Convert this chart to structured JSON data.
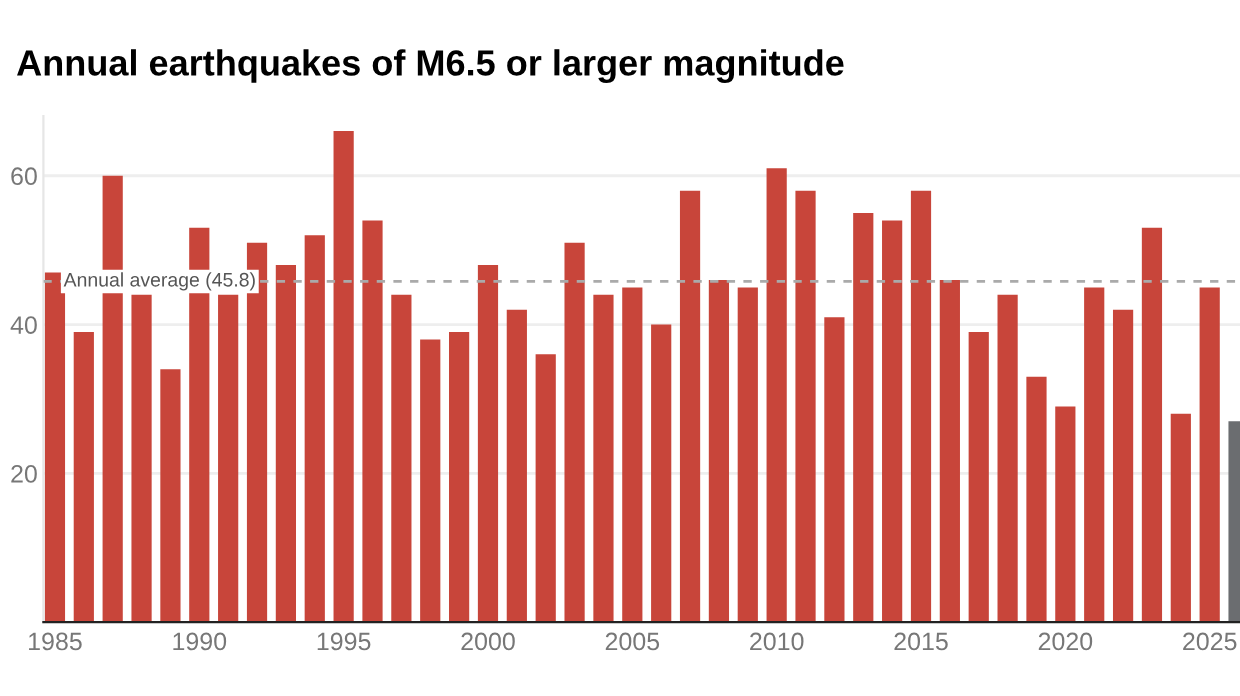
{
  "chart_data": {
    "type": "bar",
    "title": "Annual earthquakes of M6.5 or larger magnitude",
    "x": [
      1985,
      1986,
      1987,
      1988,
      1989,
      1990,
      1991,
      1992,
      1993,
      1994,
      1995,
      1996,
      1997,
      1998,
      1999,
      2000,
      2001,
      2002,
      2003,
      2004,
      2005,
      2006,
      2007,
      2008,
      2009,
      2010,
      2011,
      2012,
      2013,
      2014,
      2015,
      2016,
      2017,
      2018,
      2019,
      2020,
      2021,
      2022,
      2023,
      2024,
      2025,
      2026
    ],
    "values": [
      47,
      39,
      60,
      44,
      34,
      53,
      44,
      51,
      48,
      52,
      66,
      54,
      44,
      38,
      39,
      48,
      42,
      36,
      51,
      44,
      45,
      40,
      58,
      46,
      45,
      61,
      58,
      41,
      55,
      54,
      58,
      46,
      39,
      44,
      33,
      29,
      45,
      42,
      53,
      28,
      45,
      27
    ],
    "colors": [
      "#c8453a",
      "#c8453a",
      "#c8453a",
      "#c8453a",
      "#c8453a",
      "#c8453a",
      "#c8453a",
      "#c8453a",
      "#c8453a",
      "#c8453a",
      "#c8453a",
      "#c8453a",
      "#c8453a",
      "#c8453a",
      "#c8453a",
      "#c8453a",
      "#c8453a",
      "#c8453a",
      "#c8453a",
      "#c8453a",
      "#c8453a",
      "#c8453a",
      "#c8453a",
      "#c8453a",
      "#c8453a",
      "#c8453a",
      "#c8453a",
      "#c8453a",
      "#c8453a",
      "#c8453a",
      "#c8453a",
      "#c8453a",
      "#c8453a",
      "#c8453a",
      "#c8453a",
      "#c8453a",
      "#c8453a",
      "#c8453a",
      "#c8453a",
      "#c8453a",
      "#c8453a",
      "#6b6d70"
    ],
    "xlim": [
      1984.6,
      2026.05
    ],
    "xticks": [
      1985,
      1990,
      1995,
      2000,
      2005,
      2010,
      2015,
      2020,
      2025
    ],
    "ylim": [
      0,
      68
    ],
    "yticks": [
      20,
      40,
      60
    ],
    "grid": "y",
    "ref_lines": [
      {
        "axis": "y",
        "value": 45.8,
        "label": "Annual average (45.8)",
        "color": "#aaaaaa",
        "line_style": "dashed"
      }
    ]
  }
}
